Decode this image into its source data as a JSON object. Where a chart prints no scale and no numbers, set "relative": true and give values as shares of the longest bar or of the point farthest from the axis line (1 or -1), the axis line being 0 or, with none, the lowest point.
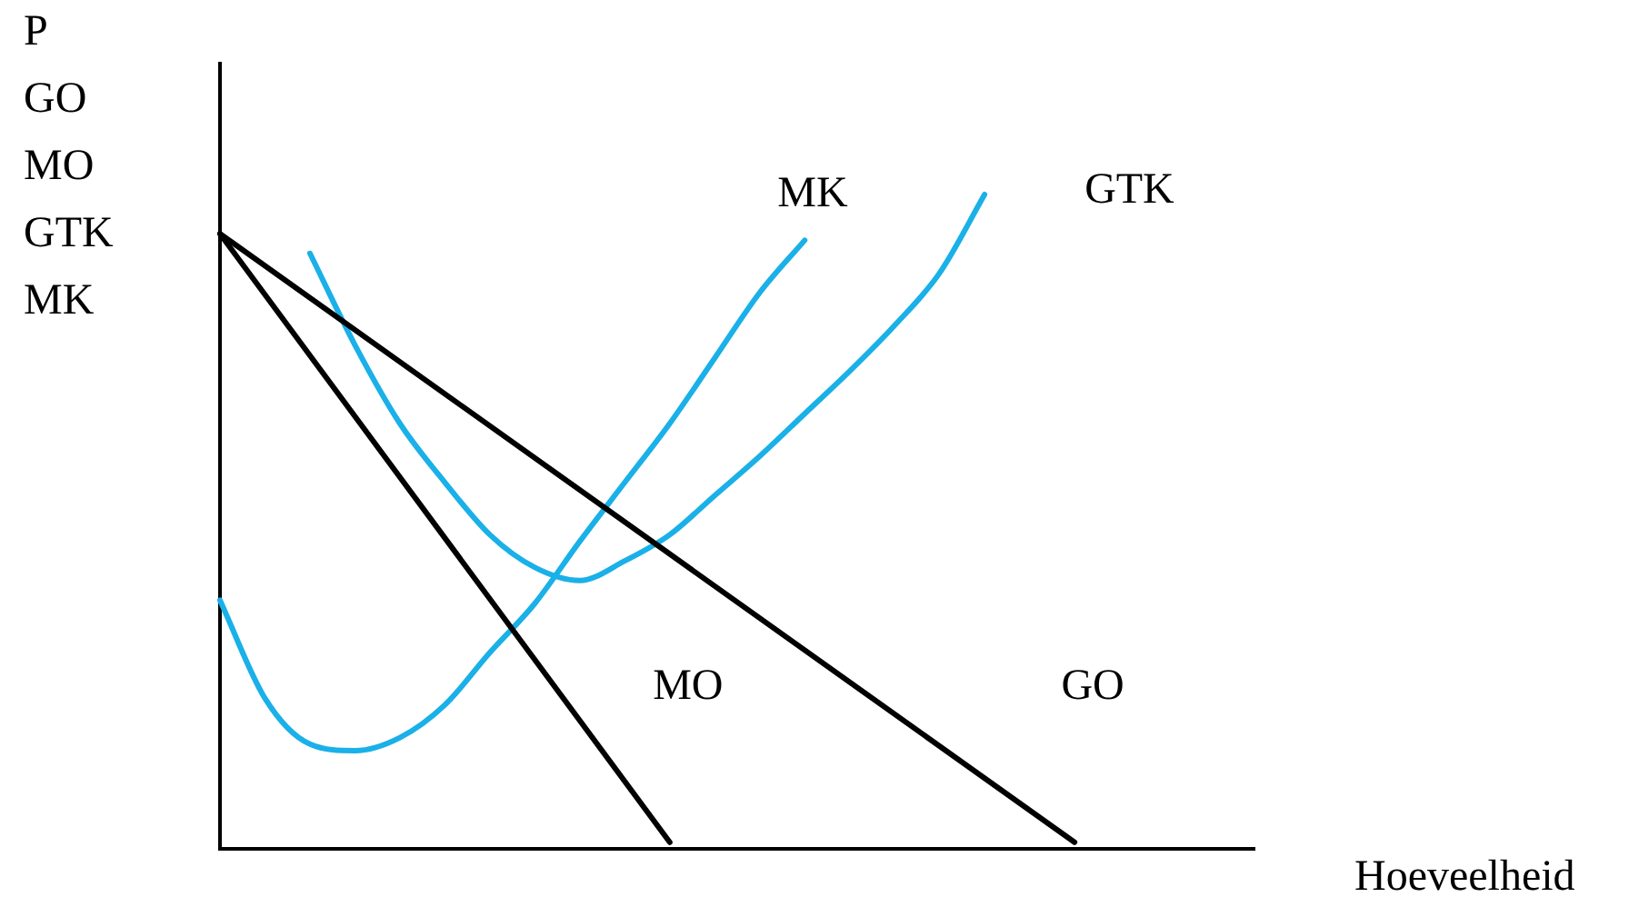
{
  "chart_data": {
    "type": "line",
    "relative": true,
    "xlabel": "Hoeveelheid",
    "ylabel": "P\nGO\nMO\nGTK\nMK",
    "legend": false,
    "marker": "none",
    "categories": [
      null,
      null,
      null,
      null,
      null,
      null,
      null,
      null,
      null,
      null,
      null,
      null,
      null,
      null,
      null,
      null,
      null,
      null,
      null,
      null,
      null,
      null,
      null,
      null
    ],
    "series": [
      {
        "name": "GO",
        "color": "#000000",
        "values": [
          0.94,
          null,
          null,
          null,
          null,
          null,
          null,
          null,
          null,
          null,
          null,
          null,
          null,
          null,
          null,
          null,
          null,
          null,
          null,
          0.01,
          null,
          null,
          null,
          null
        ]
      },
      {
        "name": "MO",
        "color": "#000000",
        "values": [
          0.94,
          null,
          null,
          null,
          null,
          null,
          null,
          null,
          null,
          null,
          0.01,
          null,
          null,
          null,
          null,
          null,
          null,
          null,
          null,
          null,
          null,
          null,
          null,
          null
        ]
      },
      {
        "name": "MK",
        "color": "#1ab0e8",
        "values": [
          0.38,
          0.23,
          0.16,
          0.15,
          0.17,
          0.22,
          0.3,
          0.375,
          0.47,
          0.56,
          0.65,
          0.75,
          0.85,
          0.93,
          null,
          null,
          null,
          null,
          null,
          null,
          null,
          null,
          null,
          null
        ]
      },
      {
        "name": "GTK",
        "color": "#1ab0e8",
        "values": [
          null,
          null,
          0.91,
          0.77,
          0.65,
          0.56,
          0.48,
          0.43,
          0.41,
          0.44,
          0.48,
          0.54,
          0.6,
          0.665,
          0.73,
          0.8,
          0.88,
          1,
          null,
          null,
          null,
          null,
          null,
          null
        ]
      }
    ]
  }
}
